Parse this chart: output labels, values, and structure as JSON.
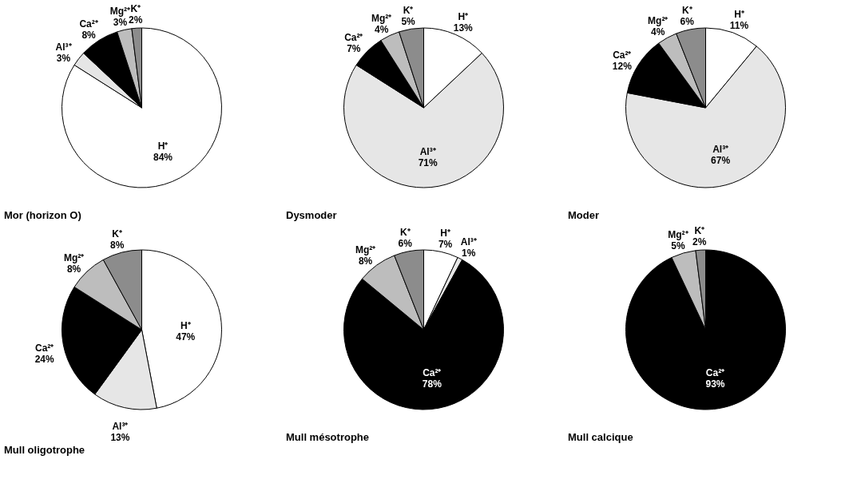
{
  "chart_data": [
    {
      "type": "pie",
      "title": "Mor (horizon O)",
      "categories": [
        "H⁺",
        "Al³⁺",
        "Ca²⁺",
        "Mg²⁺",
        "K⁺"
      ],
      "values": [
        84,
        3,
        8,
        3,
        2
      ],
      "value_labels": [
        "84%",
        "3%",
        "8%",
        "3%",
        "2%"
      ],
      "colors": [
        "#ffffff",
        "#e6e6e6",
        "#000000",
        "#bdbdbd",
        "#8c8c8c"
      ],
      "legend": false
    },
    {
      "type": "pie",
      "title": "Dysmoder",
      "categories": [
        "H⁺",
        "Al³⁺",
        "Ca²⁺",
        "Mg²⁺",
        "K⁺"
      ],
      "values": [
        13,
        71,
        7,
        4,
        5
      ],
      "value_labels": [
        "13%",
        "71%",
        "7%",
        "4%",
        "5%"
      ],
      "colors": [
        "#ffffff",
        "#e6e6e6",
        "#000000",
        "#bdbdbd",
        "#8c8c8c"
      ],
      "legend": false
    },
    {
      "type": "pie",
      "title": "Moder",
      "categories": [
        "H⁺",
        "Al³⁺",
        "Ca²⁺",
        "Mg²⁺",
        "K⁺"
      ],
      "values": [
        11,
        67,
        12,
        4,
        6
      ],
      "value_labels": [
        "11%",
        "67%",
        "12%",
        "4%",
        "6%"
      ],
      "colors": [
        "#ffffff",
        "#e6e6e6",
        "#000000",
        "#bdbdbd",
        "#8c8c8c"
      ],
      "legend": false
    },
    {
      "type": "pie",
      "title": "Mull oligotrophe",
      "categories": [
        "H⁺",
        "Al³⁺",
        "Ca²⁺",
        "Mg²⁺",
        "K⁺"
      ],
      "values": [
        47,
        13,
        24,
        8,
        8
      ],
      "value_labels": [
        "47%",
        "13%",
        "24%",
        "8%",
        "8%"
      ],
      "colors": [
        "#ffffff",
        "#e6e6e6",
        "#000000",
        "#bdbdbd",
        "#8c8c8c"
      ],
      "legend": false
    },
    {
      "type": "pie",
      "title": "Mull mésotrophe",
      "categories": [
        "H⁺",
        "Al³⁺",
        "Ca²⁺",
        "Mg²⁺",
        "K⁺"
      ],
      "values": [
        7,
        1,
        78,
        8,
        6
      ],
      "value_labels": [
        "7%",
        "1%",
        "78%",
        "8%",
        "6%"
      ],
      "colors": [
        "#ffffff",
        "#e6e6e6",
        "#000000",
        "#bdbdbd",
        "#8c8c8c"
      ],
      "legend": false
    },
    {
      "type": "pie",
      "title": "Mull calcique",
      "categories": [
        "Ca²⁺",
        "Mg²⁺",
        "K⁺"
      ],
      "values": [
        93,
        5,
        2
      ],
      "value_labels": [
        "93%",
        "5%",
        "2%"
      ],
      "colors": [
        "#000000",
        "#bdbdbd",
        "#8c8c8c"
      ],
      "legend": false
    }
  ]
}
